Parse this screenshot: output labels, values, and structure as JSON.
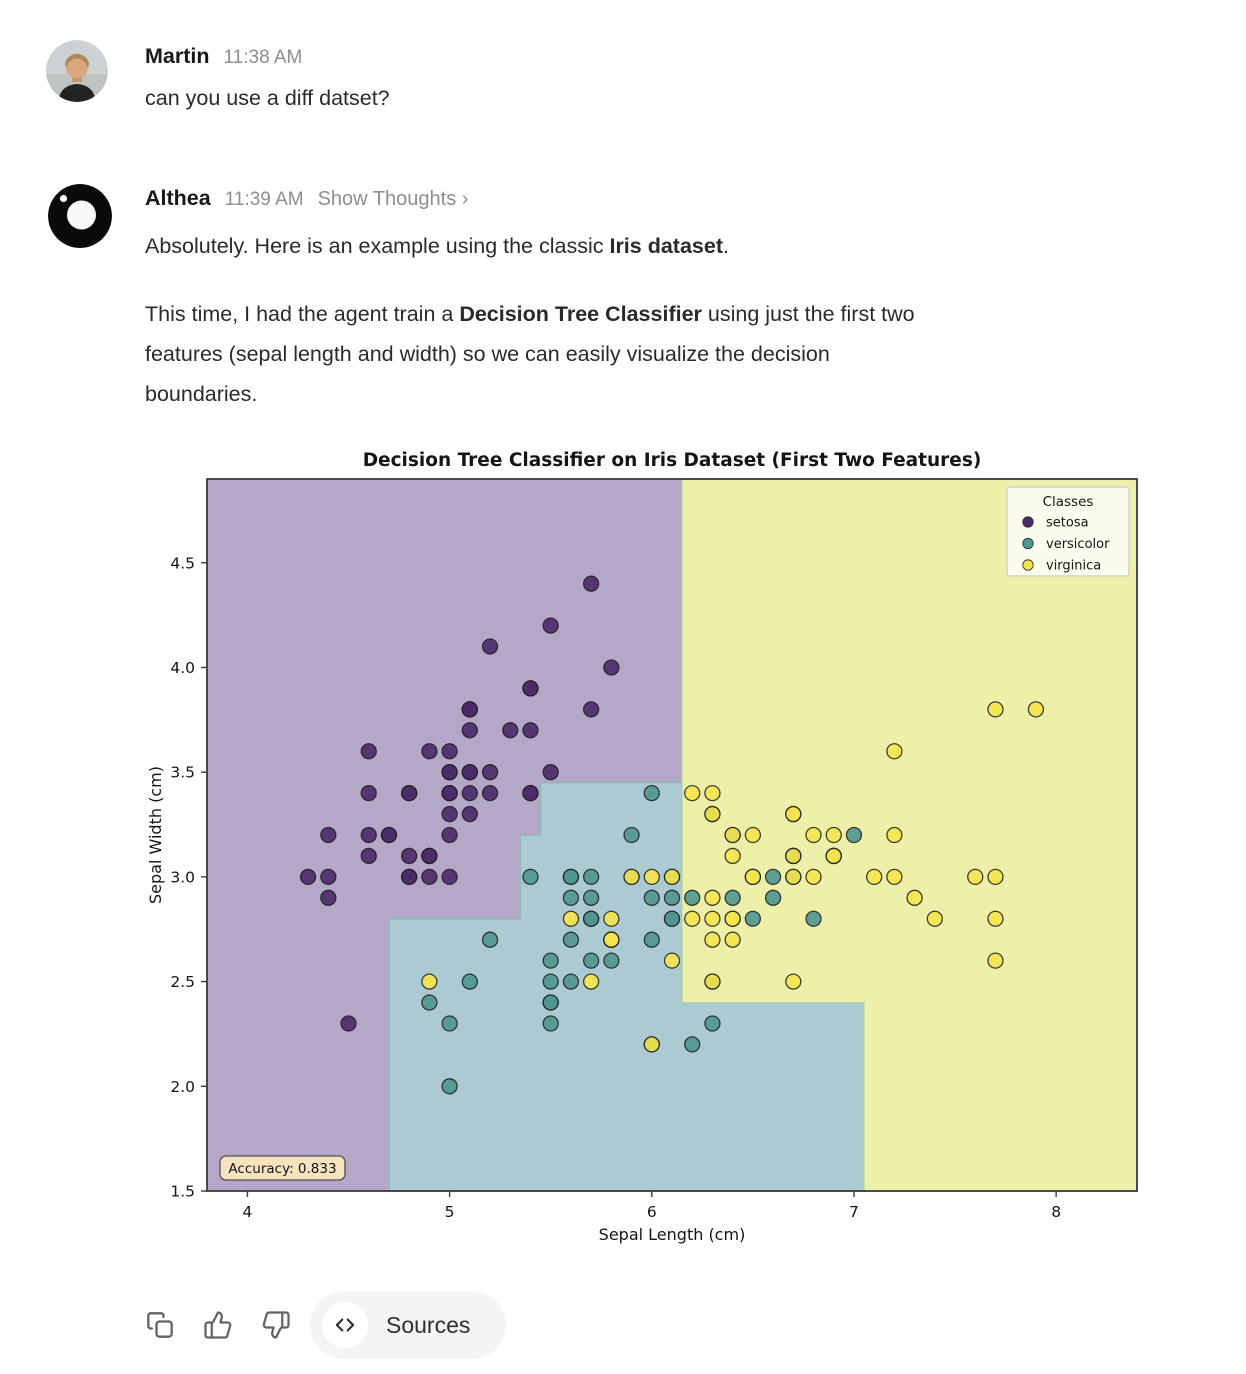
{
  "conversation": {
    "user_message": {
      "name": "Martin",
      "time": "11:38 AM",
      "text": "can you use a diff datset?"
    },
    "assistant_message": {
      "name": "Althea",
      "time": "11:39 AM",
      "thoughts_label": "Show Thoughts ›",
      "p1": [
        {
          "t": "Absolutely. Here is an example using the classic ",
          "b": false
        },
        {
          "t": "Iris dataset",
          "b": true
        },
        {
          "t": ".",
          "b": false
        }
      ],
      "p2_lines": [
        [
          {
            "t": "This time, I had the agent train a ",
            "b": false
          },
          {
            "t": "Decision Tree Classifier",
            "b": true
          },
          {
            "t": " using just the first two",
            "b": false
          }
        ],
        [
          {
            "t": "features (sepal length and width) so we can easily visualize the decision",
            "b": false
          }
        ],
        [
          {
            "t": "boundaries.",
            "b": false
          }
        ]
      ]
    }
  },
  "actions": {
    "copy": "copy",
    "thumbs_up": "thumbs up",
    "thumbs_down": "thumbs down",
    "sources_label": "Sources"
  },
  "chart_data": {
    "type": "scatter",
    "title": "Decision Tree Classifier on Iris Dataset (First Two Features)",
    "xlabel": "Sepal Length (cm)",
    "ylabel": "Sepal Width (cm)",
    "xlim": [
      3.8,
      8.4
    ],
    "ylim": [
      1.5,
      4.9
    ],
    "xticks": [
      4,
      5,
      6,
      7,
      8
    ],
    "yticks": [
      1.5,
      2.0,
      2.5,
      3.0,
      3.5,
      4.0,
      4.5
    ],
    "grid": false,
    "legend": {
      "title": "Classes",
      "position": "upper right"
    },
    "annotation": "Accuracy: 0.833",
    "annotation_box_color": "#f6e3c0",
    "regions": [
      {
        "name": "setosa-region",
        "color": "#b5a7c7",
        "polygon": [
          [
            3.8,
            4.9
          ],
          [
            6.15,
            4.9
          ],
          [
            6.15,
            3.45
          ],
          [
            5.45,
            3.45
          ],
          [
            5.45,
            3.2
          ],
          [
            5.35,
            3.2
          ],
          [
            5.35,
            2.8
          ],
          [
            4.7,
            2.8
          ],
          [
            4.7,
            1.5
          ],
          [
            3.8,
            1.5
          ]
        ]
      },
      {
        "name": "versicolor-region",
        "color": "#abcad1",
        "edge": "#84b7ae",
        "polygon": [
          [
            4.7,
            2.8
          ],
          [
            5.35,
            2.8
          ],
          [
            5.35,
            3.2
          ],
          [
            5.45,
            3.2
          ],
          [
            5.45,
            3.45
          ],
          [
            6.15,
            3.45
          ],
          [
            6.15,
            2.4
          ],
          [
            7.05,
            2.4
          ],
          [
            7.05,
            1.5
          ],
          [
            4.7,
            1.5
          ]
        ]
      },
      {
        "name": "virginica-region",
        "color": "#eef0aa",
        "edge": "#b9d6a4",
        "polygon": [
          [
            6.15,
            4.9
          ],
          [
            8.4,
            4.9
          ],
          [
            8.4,
            1.5
          ],
          [
            7.05,
            1.5
          ],
          [
            7.05,
            2.4
          ],
          [
            6.15,
            2.4
          ]
        ]
      }
    ],
    "series": [
      {
        "name": "setosa",
        "color": "#4a2a68",
        "points": [
          [
            5.1,
            3.5
          ],
          [
            4.9,
            3.0
          ],
          [
            4.7,
            3.2
          ],
          [
            4.6,
            3.1
          ],
          [
            5.0,
            3.6
          ],
          [
            5.4,
            3.9
          ],
          [
            4.6,
            3.4
          ],
          [
            5.0,
            3.4
          ],
          [
            4.4,
            2.9
          ],
          [
            4.9,
            3.1
          ],
          [
            5.4,
            3.7
          ],
          [
            4.8,
            3.4
          ],
          [
            4.8,
            3.0
          ],
          [
            4.3,
            3.0
          ],
          [
            5.8,
            4.0
          ],
          [
            5.7,
            4.4
          ],
          [
            5.4,
            3.9
          ],
          [
            5.1,
            3.5
          ],
          [
            5.7,
            3.8
          ],
          [
            5.1,
            3.8
          ],
          [
            5.4,
            3.4
          ],
          [
            5.1,
            3.7
          ],
          [
            4.6,
            3.6
          ],
          [
            5.1,
            3.3
          ],
          [
            4.8,
            3.4
          ],
          [
            5.0,
            3.0
          ],
          [
            5.0,
            3.4
          ],
          [
            5.2,
            3.5
          ],
          [
            5.2,
            3.4
          ],
          [
            4.7,
            3.2
          ],
          [
            4.8,
            3.1
          ],
          [
            5.4,
            3.4
          ],
          [
            5.2,
            4.1
          ],
          [
            5.5,
            4.2
          ],
          [
            4.9,
            3.1
          ],
          [
            5.0,
            3.2
          ],
          [
            5.5,
            3.5
          ],
          [
            4.9,
            3.6
          ],
          [
            4.4,
            3.0
          ],
          [
            5.1,
            3.4
          ],
          [
            5.0,
            3.5
          ],
          [
            4.5,
            2.3
          ],
          [
            4.4,
            3.2
          ],
          [
            5.0,
            3.5
          ],
          [
            5.1,
            3.8
          ],
          [
            4.8,
            3.0
          ],
          [
            5.1,
            3.8
          ],
          [
            4.6,
            3.2
          ],
          [
            5.3,
            3.7
          ],
          [
            5.0,
            3.3
          ]
        ]
      },
      {
        "name": "versicolor",
        "color": "#4f968e",
        "points": [
          [
            7.0,
            3.2
          ],
          [
            6.4,
            3.2
          ],
          [
            6.9,
            3.1
          ],
          [
            5.5,
            2.3
          ],
          [
            6.5,
            2.8
          ],
          [
            5.7,
            2.8
          ],
          [
            6.3,
            3.3
          ],
          [
            4.9,
            2.4
          ],
          [
            6.6,
            2.9
          ],
          [
            5.2,
            2.7
          ],
          [
            5.0,
            2.0
          ],
          [
            5.9,
            3.0
          ],
          [
            6.0,
            2.2
          ],
          [
            6.1,
            2.9
          ],
          [
            5.6,
            2.9
          ],
          [
            6.7,
            3.1
          ],
          [
            5.6,
            3.0
          ],
          [
            5.8,
            2.7
          ],
          [
            6.2,
            2.2
          ],
          [
            5.6,
            2.5
          ],
          [
            5.9,
            3.2
          ],
          [
            6.1,
            2.8
          ],
          [
            6.3,
            2.5
          ],
          [
            6.1,
            2.8
          ],
          [
            6.4,
            2.9
          ],
          [
            6.6,
            3.0
          ],
          [
            6.8,
            2.8
          ],
          [
            6.7,
            3.0
          ],
          [
            6.0,
            2.9
          ],
          [
            5.7,
            2.6
          ],
          [
            5.5,
            2.4
          ],
          [
            5.5,
            2.4
          ],
          [
            5.8,
            2.7
          ],
          [
            6.0,
            2.7
          ],
          [
            5.4,
            3.0
          ],
          [
            6.0,
            3.4
          ],
          [
            6.7,
            3.1
          ],
          [
            6.3,
            2.3
          ],
          [
            5.6,
            3.0
          ],
          [
            5.5,
            2.5
          ],
          [
            5.5,
            2.6
          ],
          [
            6.1,
            3.0
          ],
          [
            5.8,
            2.6
          ],
          [
            5.0,
            2.3
          ],
          [
            5.6,
            2.7
          ],
          [
            5.7,
            3.0
          ],
          [
            5.7,
            2.9
          ],
          [
            6.2,
            2.9
          ],
          [
            5.1,
            2.5
          ],
          [
            5.7,
            2.8
          ]
        ]
      },
      {
        "name": "virginica",
        "color": "#f4e44d",
        "points": [
          [
            6.3,
            3.3
          ],
          [
            5.8,
            2.7
          ],
          [
            7.1,
            3.0
          ],
          [
            6.3,
            2.9
          ],
          [
            6.5,
            3.0
          ],
          [
            7.6,
            3.0
          ],
          [
            4.9,
            2.5
          ],
          [
            7.3,
            2.9
          ],
          [
            6.7,
            2.5
          ],
          [
            7.2,
            3.6
          ],
          [
            6.5,
            3.2
          ],
          [
            6.4,
            2.7
          ],
          [
            6.8,
            3.0
          ],
          [
            5.7,
            2.5
          ],
          [
            5.8,
            2.8
          ],
          [
            6.4,
            3.2
          ],
          [
            6.5,
            3.0
          ],
          [
            7.7,
            3.8
          ],
          [
            7.7,
            2.6
          ],
          [
            6.0,
            2.2
          ],
          [
            6.9,
            3.2
          ],
          [
            5.6,
            2.8
          ],
          [
            7.7,
            2.8
          ],
          [
            6.3,
            2.7
          ],
          [
            6.7,
            3.3
          ],
          [
            7.2,
            3.2
          ],
          [
            6.2,
            2.8
          ],
          [
            6.1,
            3.0
          ],
          [
            6.4,
            2.8
          ],
          [
            7.2,
            3.0
          ],
          [
            7.4,
            2.8
          ],
          [
            7.9,
            3.8
          ],
          [
            6.4,
            2.8
          ],
          [
            6.3,
            2.8
          ],
          [
            6.1,
            2.6
          ],
          [
            7.7,
            3.0
          ],
          [
            6.3,
            3.4
          ],
          [
            6.4,
            3.1
          ],
          [
            6.0,
            3.0
          ],
          [
            6.9,
            3.1
          ],
          [
            6.7,
            3.1
          ],
          [
            6.9,
            3.1
          ],
          [
            5.8,
            2.7
          ],
          [
            6.8,
            3.2
          ],
          [
            6.7,
            3.3
          ],
          [
            6.7,
            3.0
          ],
          [
            6.3,
            2.5
          ],
          [
            6.5,
            3.0
          ],
          [
            6.2,
            3.4
          ],
          [
            5.9,
            3.0
          ]
        ]
      }
    ]
  }
}
